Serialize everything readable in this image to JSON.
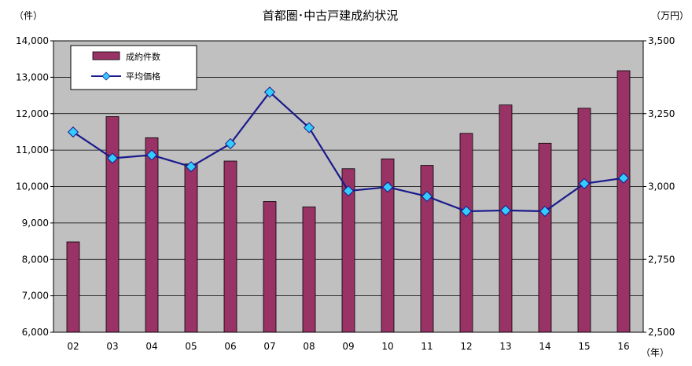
{
  "chart_data": {
    "type": "bar+line",
    "title": "首都圏･中古戸建成約状況",
    "left_unit": "（件）",
    "right_unit": "（万円）",
    "x_unit": "（年）",
    "categories": [
      "02",
      "03",
      "04",
      "05",
      "06",
      "07",
      "08",
      "09",
      "10",
      "11",
      "12",
      "13",
      "14",
      "15",
      "16"
    ],
    "series": [
      {
        "name": "成約件数",
        "type": "bar",
        "axis": "left",
        "color": "#993366",
        "values": [
          8480,
          11920,
          11340,
          10620,
          10700,
          9590,
          9440,
          10490,
          10760,
          10580,
          11460,
          12240,
          11190,
          12150,
          13180
        ]
      },
      {
        "name": "平均価格",
        "type": "line",
        "axis": "right",
        "color": "#1a1a8c",
        "marker_color": "#33ccff",
        "values": [
          3187,
          3097,
          3108,
          3068,
          3147,
          3324,
          3202,
          2985,
          2998,
          2966,
          2915,
          2918,
          2915,
          3010,
          3029
        ]
      }
    ],
    "y_left": {
      "min": 6000,
      "max": 14000,
      "step": 1000,
      "tick_labels": [
        "6,000",
        "7,000",
        "8,000",
        "9,000",
        "10,000",
        "11,000",
        "12,000",
        "13,000",
        "14,000"
      ]
    },
    "y_right": {
      "min": 2500,
      "max": 3500,
      "step": 250,
      "tick_labels": [
        "2,500",
        "2,750",
        "3,000",
        "3,250",
        "3,500"
      ]
    },
    "plot_background": "#c0c0c0",
    "grid": "horizontal",
    "legend_position": "top-left"
  }
}
